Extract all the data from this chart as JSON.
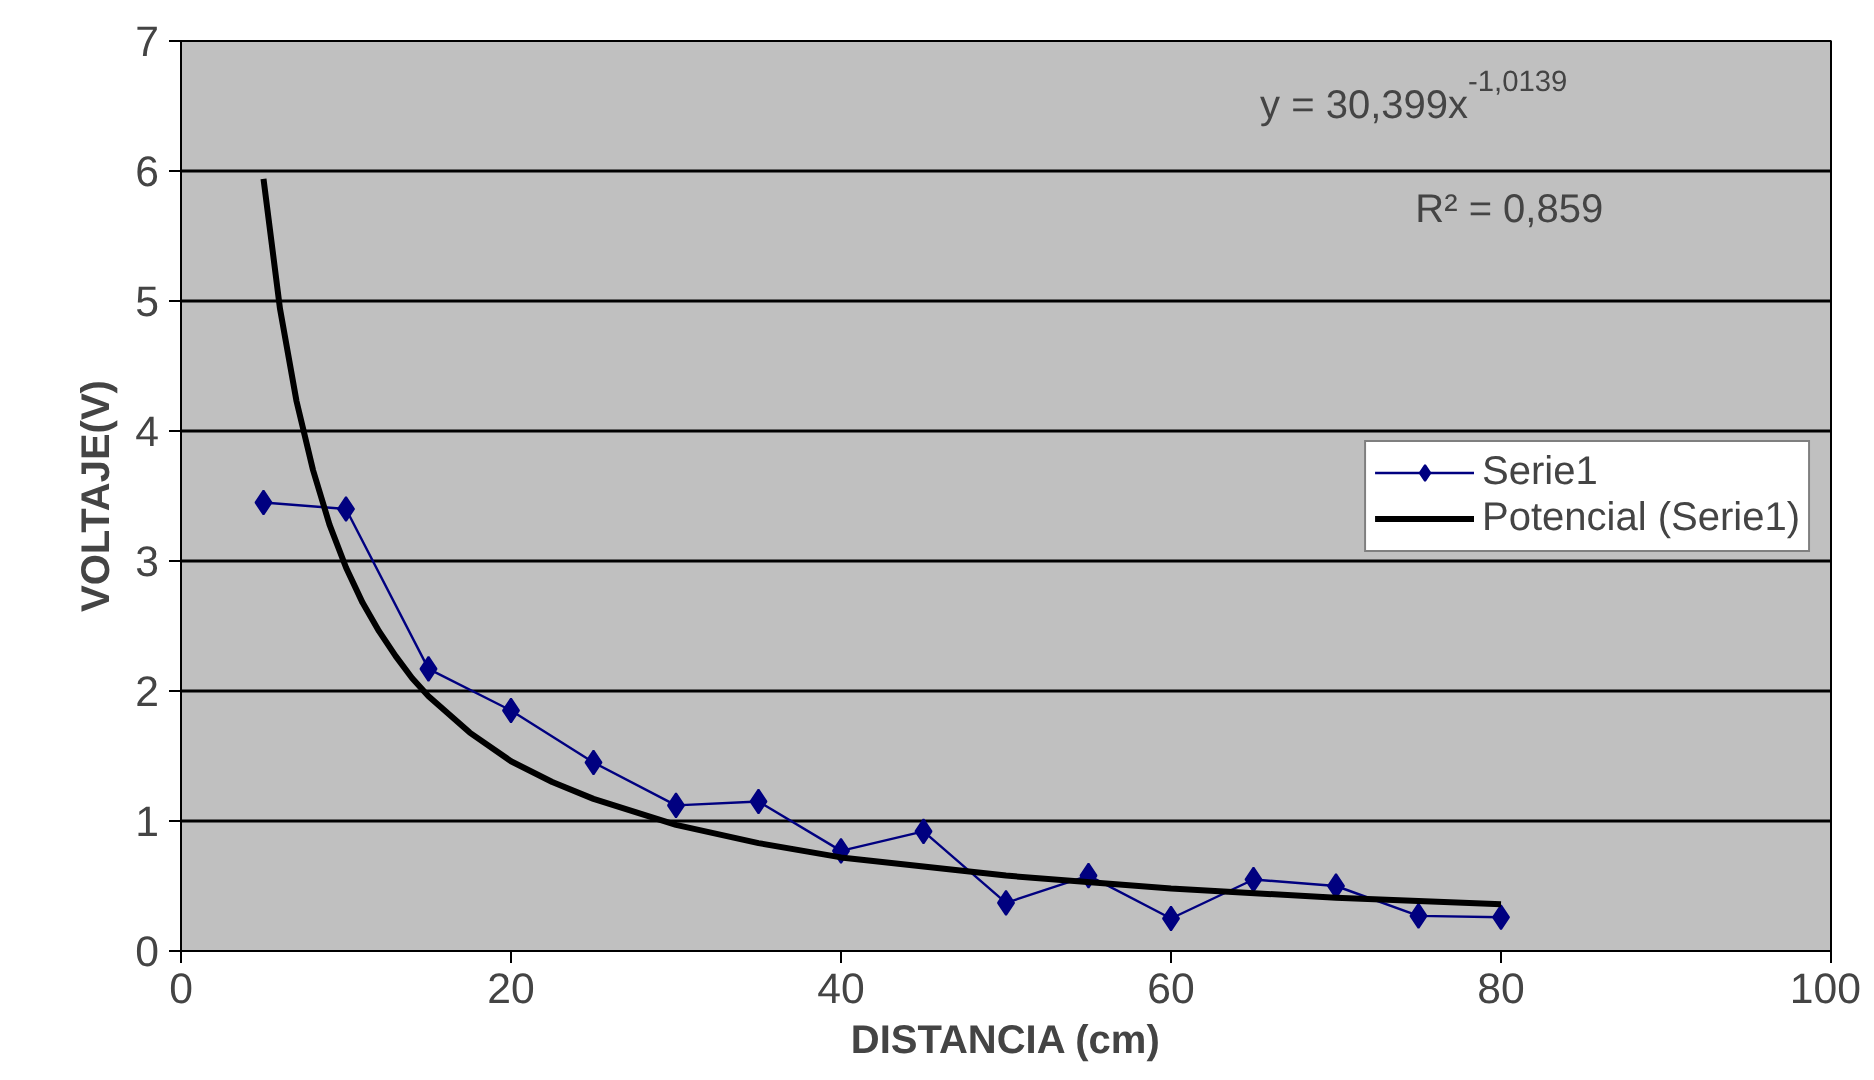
{
  "chart_data": {
    "type": "line",
    "xlabel": "DISTANCIA (cm)",
    "ylabel": "VOLTAJE(V)",
    "xlim": [
      0,
      100
    ],
    "xticks": [
      0,
      20,
      40,
      60,
      80,
      100
    ],
    "ylim": [
      0,
      7
    ],
    "yticks": [
      0,
      1,
      2,
      3,
      4,
      5,
      6,
      7
    ],
    "grid": "y",
    "legend": "right",
    "marker": "diamond",
    "series": [
      {
        "name": "Serie1",
        "color": "#000080",
        "x": [
          5,
          10,
          15,
          20,
          25,
          30,
          35,
          40,
          45,
          50,
          55,
          60,
          65,
          70,
          75,
          80
        ],
        "values": [
          3.45,
          3.4,
          2.17,
          1.85,
          1.45,
          1.12,
          1.15,
          0.77,
          0.92,
          0.37,
          0.58,
          0.25,
          0.55,
          0.5,
          0.27,
          0.26
        ]
      },
      {
        "name": "Potencial (Serie1)",
        "color": "#000000",
        "type": "line",
        "marker": "none",
        "x": [
          5,
          6,
          7,
          8,
          9,
          10,
          11,
          12,
          13,
          14,
          15,
          17.5,
          20,
          22.5,
          25,
          30,
          35,
          40,
          50,
          60,
          70,
          80
        ],
        "values": [
          5.94,
          4.94,
          4.23,
          3.7,
          3.28,
          2.95,
          2.68,
          2.46,
          2.27,
          2.1,
          1.96,
          1.68,
          1.46,
          1.3,
          1.17,
          0.97,
          0.83,
          0.72,
          0.58,
          0.48,
          0.41,
          0.36
        ]
      }
    ],
    "annotations": [
      "y = 30,399x$^{-1,0139}$",
      "R² = 0,859"
    ]
  }
}
